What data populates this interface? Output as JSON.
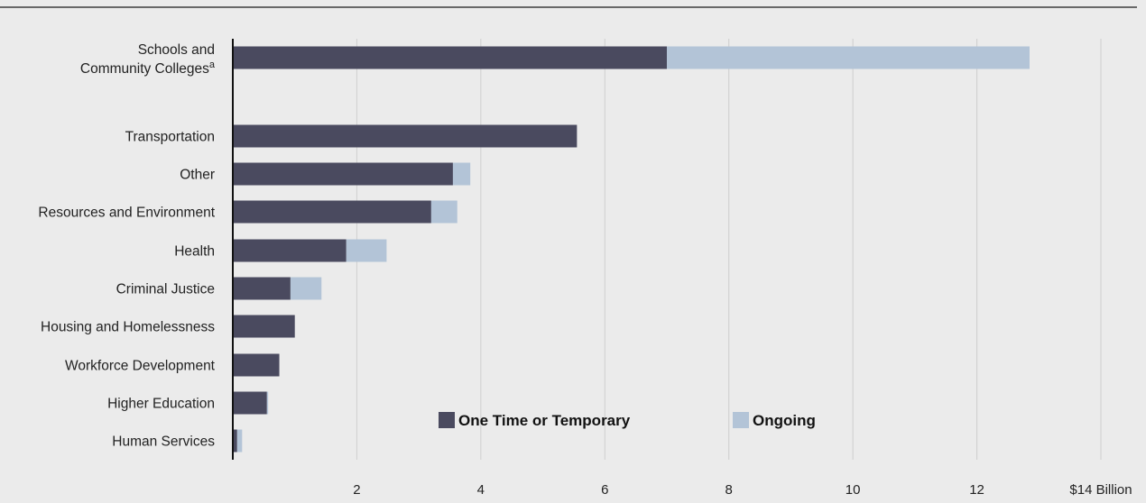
{
  "chart_data": {
    "type": "bar",
    "orientation": "horizontal",
    "stacked": true,
    "categories": [
      "Schools and Community Colleges",
      "Transportation",
      "Other",
      "Resources and Environment",
      "Health",
      "Criminal Justice",
      "Housing and Homelessness",
      "Workforce Development",
      "Higher Education",
      "Human Services"
    ],
    "category_superscripts": [
      "a",
      "",
      "",
      "",
      "",
      "",
      "",
      "",
      "",
      ""
    ],
    "series": [
      {
        "name": "One Time or Temporary",
        "color": "#4a4a5f",
        "values": [
          7.0,
          5.55,
          3.55,
          3.2,
          1.83,
          0.93,
          1.0,
          0.75,
          0.55,
          0.07
        ]
      },
      {
        "name": "Ongoing",
        "color": "#b3c4d7",
        "values": [
          5.85,
          0.0,
          0.28,
          0.42,
          0.65,
          0.5,
          0.0,
          0.0,
          0.02,
          0.08
        ]
      }
    ],
    "x_ticks": [
      "2",
      "4",
      "6",
      "8",
      "10",
      "12",
      "$14 Billion"
    ],
    "x_tick_values": [
      2,
      4,
      6,
      8,
      10,
      12,
      14
    ],
    "xlim": [
      0,
      14
    ],
    "grid": "vertical",
    "legend_position": "bottom-center-inside",
    "title": "",
    "xlabel": "",
    "ylabel": ""
  }
}
